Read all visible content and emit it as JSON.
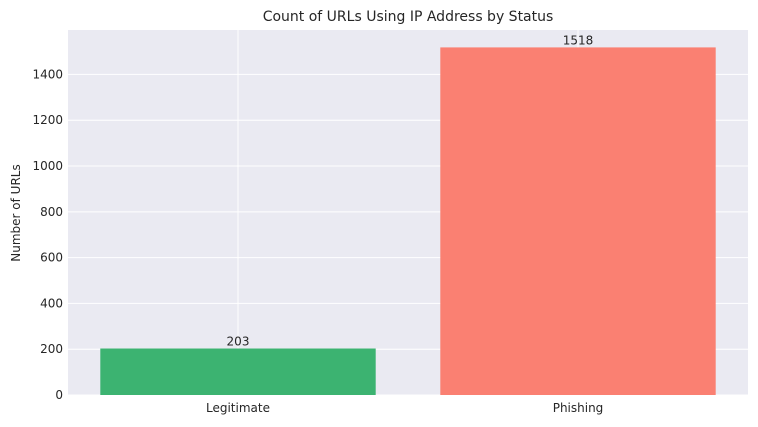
{
  "chart_data": {
    "type": "bar",
    "title": "Count of URLs Using IP Address by Status",
    "xlabel": "",
    "ylabel": "Number of URLs",
    "categories": [
      "Legitimate",
      "Phishing"
    ],
    "values": [
      203,
      1518
    ],
    "data_labels": [
      "203",
      "1518"
    ],
    "colors": [
      "#3cb371",
      "#fa8072"
    ],
    "ylim": [
      0,
      1594
    ],
    "yticks": [
      0,
      200,
      400,
      600,
      800,
      1000,
      1200,
      1400
    ],
    "grid": true,
    "style": {
      "plot_background": "#eaeaf2",
      "grid_color": "#ffffff"
    }
  }
}
